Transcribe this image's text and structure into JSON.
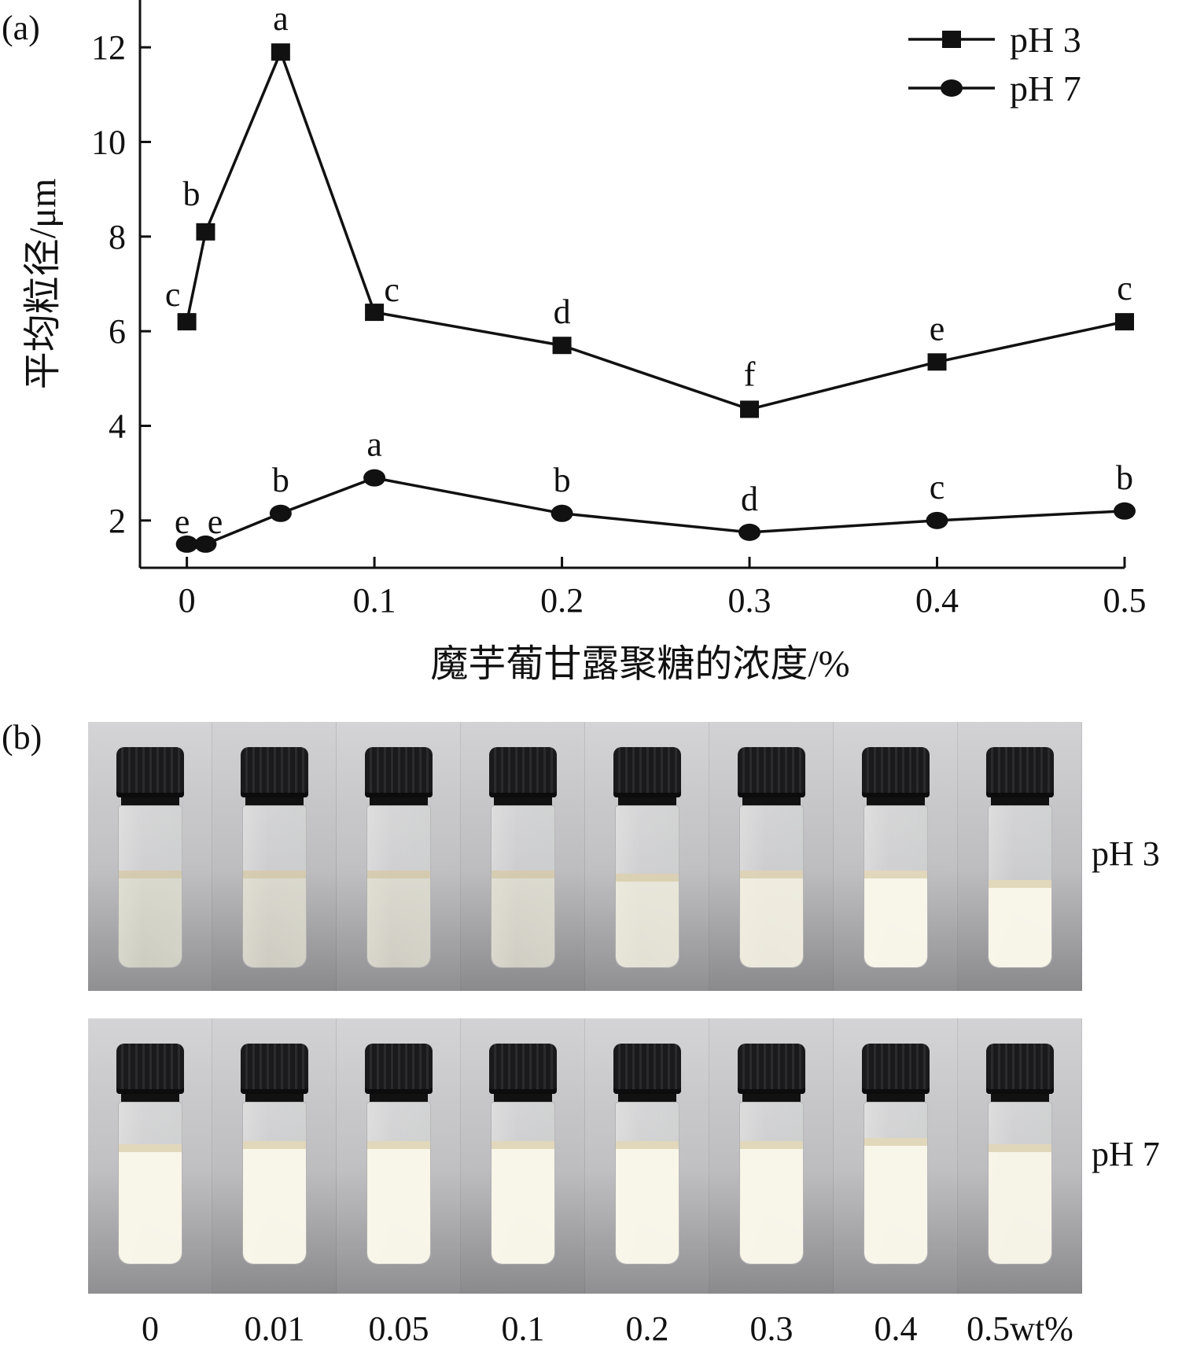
{
  "panel_a_label": "(a)",
  "panel_b_label": "(b)",
  "chart_data": {
    "type": "line",
    "xlabel": "魔芋葡甘露聚糖的浓度/%",
    "ylabel": "平均粒径/μm",
    "x": [
      0,
      0.01,
      0.05,
      0.1,
      0.2,
      0.3,
      0.4,
      0.5
    ],
    "xticks": [
      0,
      0.1,
      0.2,
      0.3,
      0.4,
      0.5
    ],
    "xtick_labels": [
      "0",
      "0.1",
      "0.2",
      "0.3",
      "0.4",
      "0.5"
    ],
    "yticks": [
      2,
      4,
      6,
      8,
      10,
      12
    ],
    "xlim": [
      -0.025,
      0.5
    ],
    "ylim": [
      1.0,
      13.0
    ],
    "legend_position": "top-right",
    "grid": false,
    "series": [
      {
        "name": "pH 3",
        "marker": "square",
        "values": [
          6.2,
          8.1,
          11.9,
          6.4,
          5.7,
          4.35,
          5.35,
          6.2
        ],
        "letters": [
          "c",
          "b",
          "a",
          "c",
          "d",
          "f",
          "e",
          "c"
        ]
      },
      {
        "name": "pH 7",
        "marker": "circle",
        "values": [
          1.5,
          1.5,
          2.15,
          2.9,
          2.15,
          1.75,
          2.0,
          2.2
        ],
        "letters": [
          "e",
          "e",
          "b",
          "a",
          "b",
          "d",
          "c",
          "b"
        ]
      }
    ]
  },
  "photos": {
    "row_labels": [
      "pH 3",
      "pH 7"
    ],
    "concentration_labels": [
      "0",
      "0.01",
      "0.05",
      "0.1",
      "0.2",
      "0.3",
      "0.4",
      "0.5wt%"
    ],
    "ph3_liquid_fill": [
      0.6,
      0.6,
      0.6,
      0.6,
      0.58,
      0.6,
      0.6,
      0.54
    ],
    "ph3_opacity": [
      0.15,
      0.2,
      0.2,
      0.25,
      0.6,
      0.75,
      0.95,
      0.95
    ],
    "ph7_liquid_fill": [
      0.74,
      0.76,
      0.76,
      0.76,
      0.76,
      0.76,
      0.78,
      0.74
    ],
    "ph7_opacity": [
      0.95,
      0.95,
      0.95,
      0.95,
      0.95,
      0.95,
      0.95,
      0.92
    ]
  }
}
